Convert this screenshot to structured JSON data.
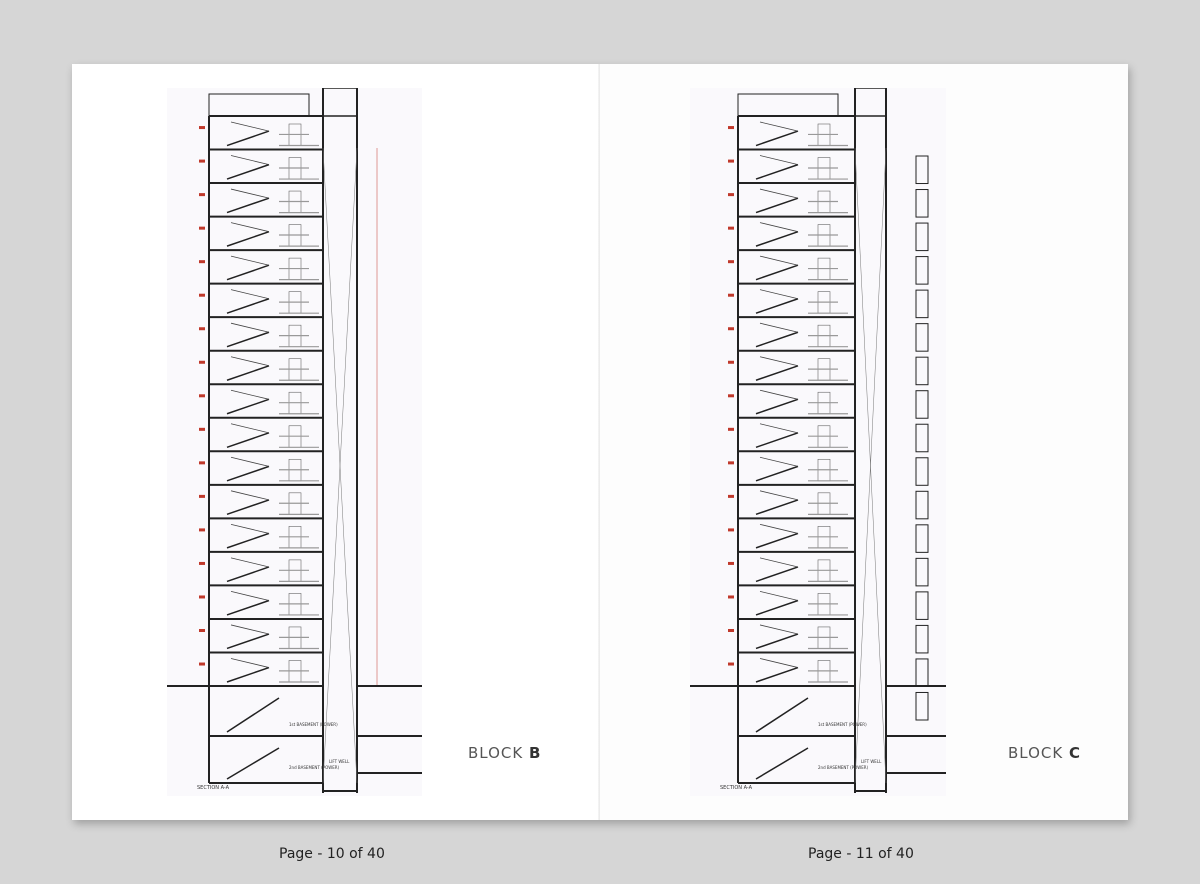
{
  "spread": {
    "left_page": {
      "block_prefix": "BLOCK",
      "block_letter": "B",
      "page_label": "Page - 10 of 40",
      "section_caption": "SECTION A-A",
      "basement_labels": [
        "1st BASEMENT (POWER)",
        "2nd BASEMENT (POWER)"
      ],
      "lift_label": "LIFT WELL"
    },
    "right_page": {
      "block_prefix": "BLOCK",
      "block_letter": "C",
      "page_label": "Page - 11 of 40",
      "section_caption": "SECTION A-A",
      "basement_labels": [
        "1st BASEMENT (POWER)",
        "2nd BASEMENT (POWER)"
      ],
      "lift_label": "LIFT WELL"
    }
  },
  "colors": {
    "background": "#d6d6d6",
    "paper": "#ffffff",
    "drawing_line": "#222222",
    "accent_red": "#c0392b"
  }
}
